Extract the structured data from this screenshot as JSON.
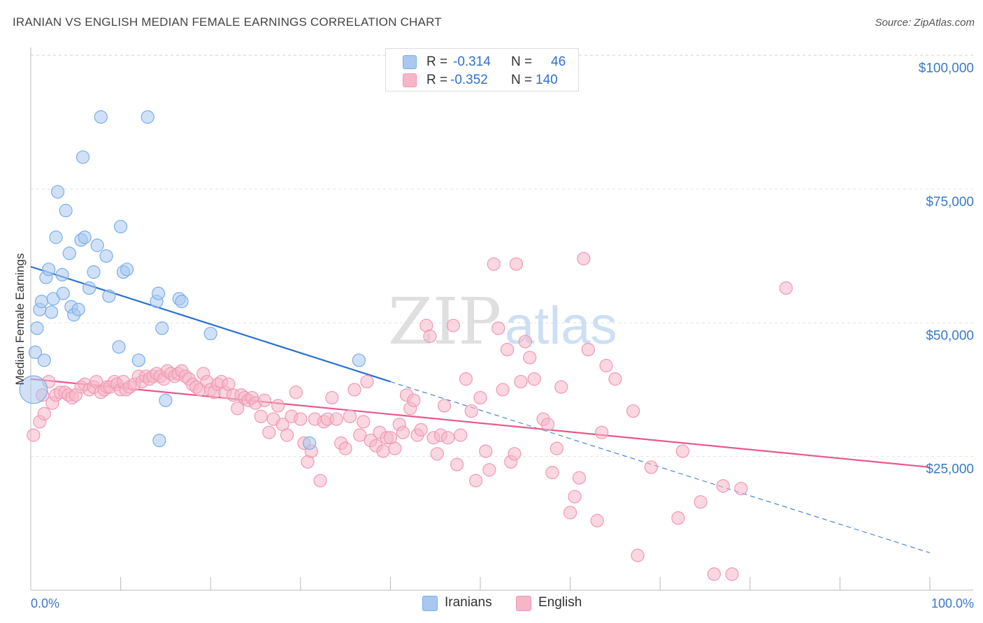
{
  "title": "IRANIAN VS ENGLISH MEDIAN FEMALE EARNINGS CORRELATION CHART",
  "source": "Source: ZipAtlas.com",
  "watermark": {
    "zip": "ZIP",
    "atlas": "atlas"
  },
  "legend": {
    "rows": [
      {
        "r_label": "R =",
        "r_value": "-0.314",
        "n_label": "N =",
        "n_value": "46",
        "color": "#a9c8f0"
      },
      {
        "r_label": "R =",
        "r_value": "-0.352",
        "n_label": "N =",
        "n_value": "140",
        "color": "#f5b6c8"
      }
    ]
  },
  "bottom_legend": [
    {
      "label": "Iranians",
      "color": "#a9c8f0"
    },
    {
      "label": "English",
      "color": "#f5b6c8"
    }
  ],
  "chart_data": {
    "type": "scatter",
    "title": "IRANIAN VS ENGLISH MEDIAN FEMALE EARNINGS CORRELATION CHART",
    "xlabel": "",
    "ylabel": "Median Female Earnings",
    "xlim": [
      0,
      100
    ],
    "ylim": [
      0,
      105000
    ],
    "x_tick_labels": [
      "0.0%",
      "100.0%"
    ],
    "y_ticks": [
      25000,
      50000,
      75000,
      100000
    ],
    "y_tick_labels": [
      "$25,000",
      "$50,000",
      "$75,000",
      "$100,000"
    ],
    "grid": true,
    "legend_placement": "top-center",
    "series": [
      {
        "name": "Iranians",
        "color": "#7aaee8",
        "fill": "#a9c8f0",
        "line_color": "#2a6fd1",
        "trend": {
          "x0": 0,
          "y0": 60500,
          "x1": 40,
          "y1": 39000,
          "dash_to_x": 100,
          "dash_to_y": 7000
        },
        "points": [
          [
            0.3,
            37500,
            2.2
          ],
          [
            0.5,
            44500,
            1
          ],
          [
            0.7,
            49000,
            1
          ],
          [
            1.0,
            52500,
            1
          ],
          [
            1.2,
            54000,
            1
          ],
          [
            1.5,
            43000,
            1
          ],
          [
            1.7,
            58500,
            1
          ],
          [
            2.0,
            60000,
            1
          ],
          [
            2.3,
            52000,
            1
          ],
          [
            2.5,
            54500,
            1
          ],
          [
            2.8,
            66000,
            1
          ],
          [
            3.0,
            74500,
            1
          ],
          [
            3.5,
            59000,
            1
          ],
          [
            3.6,
            55500,
            1
          ],
          [
            3.9,
            71000,
            1
          ],
          [
            4.3,
            63000,
            1
          ],
          [
            4.5,
            53000,
            1
          ],
          [
            4.8,
            51500,
            1
          ],
          [
            5.3,
            52500,
            1
          ],
          [
            5.6,
            65500,
            1
          ],
          [
            5.8,
            81000,
            1
          ],
          [
            6.0,
            66000,
            1
          ],
          [
            6.5,
            56500,
            1
          ],
          [
            7.0,
            59500,
            1
          ],
          [
            7.4,
            64500,
            1
          ],
          [
            7.8,
            88500,
            1
          ],
          [
            8.4,
            62500,
            1
          ],
          [
            8.7,
            55000,
            1
          ],
          [
            9.8,
            45500,
            1
          ],
          [
            10.0,
            68000,
            1
          ],
          [
            10.3,
            59500,
            1
          ],
          [
            10.7,
            60000,
            1
          ],
          [
            12.0,
            43000,
            1
          ],
          [
            13.0,
            88500,
            1
          ],
          [
            14.0,
            54000,
            1
          ],
          [
            14.2,
            55500,
            1
          ],
          [
            14.3,
            28000,
            1
          ],
          [
            14.6,
            49000,
            1
          ],
          [
            15.0,
            35500,
            1
          ],
          [
            16.5,
            54500,
            1
          ],
          [
            16.8,
            54000,
            1
          ],
          [
            20.0,
            48000,
            1
          ],
          [
            31.0,
            27500,
            1
          ],
          [
            36.5,
            43000,
            1
          ]
        ]
      },
      {
        "name": "English",
        "color": "#f098b4",
        "fill": "#f5b6c8",
        "line_color": "#e8588a",
        "trend": {
          "x0": 0,
          "y0": 39500,
          "x1": 100,
          "y1": 23000
        },
        "points": [
          [
            0.3,
            29000
          ],
          [
            1.0,
            31500
          ],
          [
            1.3,
            36500
          ],
          [
            1.5,
            33000
          ],
          [
            2.0,
            39000
          ],
          [
            2.4,
            35000
          ],
          [
            2.8,
            36500
          ],
          [
            3.3,
            37000
          ],
          [
            3.8,
            37000
          ],
          [
            4.2,
            36500
          ],
          [
            4.6,
            36000
          ],
          [
            5.0,
            36500
          ],
          [
            5.6,
            38000
          ],
          [
            6.0,
            38500
          ],
          [
            6.5,
            37500
          ],
          [
            7.0,
            38000
          ],
          [
            7.3,
            39000
          ],
          [
            7.8,
            37000
          ],
          [
            8.2,
            37500
          ],
          [
            8.5,
            38000
          ],
          [
            8.8,
            38000
          ],
          [
            9.3,
            39000
          ],
          [
            9.6,
            38500
          ],
          [
            10.0,
            37500
          ],
          [
            10.3,
            39000
          ],
          [
            10.6,
            37500
          ],
          [
            11.0,
            38000
          ],
          [
            11.5,
            38500
          ],
          [
            12.0,
            40000
          ],
          [
            12.4,
            39000
          ],
          [
            12.8,
            40000
          ],
          [
            13.2,
            39500
          ],
          [
            13.6,
            40000
          ],
          [
            14.0,
            40500
          ],
          [
            14.4,
            40000
          ],
          [
            14.8,
            39500
          ],
          [
            15.2,
            41000
          ],
          [
            15.6,
            40500
          ],
          [
            16.0,
            40000
          ],
          [
            16.4,
            40500
          ],
          [
            16.8,
            41000
          ],
          [
            17.2,
            40000
          ],
          [
            17.6,
            39500
          ],
          [
            18.0,
            38500
          ],
          [
            18.4,
            38000
          ],
          [
            18.8,
            37500
          ],
          [
            19.2,
            40500
          ],
          [
            19.6,
            39000
          ],
          [
            20.0,
            37500
          ],
          [
            20.4,
            37000
          ],
          [
            20.8,
            38500
          ],
          [
            21.2,
            39000
          ],
          [
            21.6,
            37000
          ],
          [
            22.0,
            38500
          ],
          [
            22.5,
            36500
          ],
          [
            23.0,
            34000
          ],
          [
            23.4,
            36500
          ],
          [
            23.8,
            36000
          ],
          [
            24.2,
            35500
          ],
          [
            24.6,
            36000
          ],
          [
            25.0,
            35000
          ],
          [
            25.6,
            32500
          ],
          [
            26.0,
            35500
          ],
          [
            26.5,
            29500
          ],
          [
            27.0,
            32000
          ],
          [
            27.5,
            34500
          ],
          [
            28.0,
            31000
          ],
          [
            28.5,
            29000
          ],
          [
            29.0,
            32500
          ],
          [
            29.5,
            37000
          ],
          [
            30.0,
            32000
          ],
          [
            30.4,
            27500
          ],
          [
            30.8,
            24000
          ],
          [
            31.2,
            26000
          ],
          [
            31.6,
            32000
          ],
          [
            32.2,
            20500
          ],
          [
            32.6,
            31500
          ],
          [
            33.0,
            32000
          ],
          [
            33.5,
            36000
          ],
          [
            34.0,
            32000
          ],
          [
            34.5,
            27500
          ],
          [
            35.0,
            26500
          ],
          [
            35.5,
            32500
          ],
          [
            36.0,
            37500
          ],
          [
            36.6,
            29000
          ],
          [
            37.0,
            31500
          ],
          [
            37.4,
            39000
          ],
          [
            37.8,
            28000
          ],
          [
            38.4,
            27000
          ],
          [
            38.8,
            29500
          ],
          [
            39.2,
            26000
          ],
          [
            39.6,
            28500
          ],
          [
            40.0,
            28500
          ],
          [
            40.5,
            26500
          ],
          [
            41.0,
            31000
          ],
          [
            41.4,
            29500
          ],
          [
            41.8,
            36500
          ],
          [
            42.2,
            34000
          ],
          [
            42.6,
            35500
          ],
          [
            43.0,
            29000
          ],
          [
            43.4,
            30000
          ],
          [
            44.0,
            49500
          ],
          [
            44.4,
            47500
          ],
          [
            44.8,
            28500
          ],
          [
            45.2,
            25500
          ],
          [
            45.6,
            29000
          ],
          [
            46.0,
            34500
          ],
          [
            46.4,
            28500
          ],
          [
            47.0,
            49500
          ],
          [
            47.4,
            23500
          ],
          [
            47.8,
            29000
          ],
          [
            48.4,
            39500
          ],
          [
            49.0,
            33500
          ],
          [
            49.5,
            20500
          ],
          [
            50.0,
            36000
          ],
          [
            50.6,
            26000
          ],
          [
            51.0,
            22500
          ],
          [
            51.5,
            61000
          ],
          [
            52.0,
            49000
          ],
          [
            52.5,
            37500
          ],
          [
            53.0,
            45000
          ],
          [
            53.4,
            24000
          ],
          [
            53.8,
            25500
          ],
          [
            54.0,
            61000
          ],
          [
            54.5,
            39000
          ],
          [
            55.0,
            46500
          ],
          [
            55.5,
            43500
          ],
          [
            56.0,
            39500
          ],
          [
            57.0,
            32000
          ],
          [
            57.5,
            31000
          ],
          [
            58.0,
            22000
          ],
          [
            58.5,
            26500
          ],
          [
            59.0,
            38000
          ],
          [
            60.0,
            14500
          ],
          [
            60.5,
            17500
          ],
          [
            61.0,
            21000
          ],
          [
            61.5,
            62000
          ],
          [
            62.0,
            45000
          ],
          [
            63.0,
            13000
          ],
          [
            63.5,
            29500
          ],
          [
            64.0,
            42000
          ],
          [
            65.0,
            39500
          ],
          [
            67.0,
            33500
          ],
          [
            67.5,
            6500
          ],
          [
            69.0,
            23000
          ],
          [
            72.0,
            13500
          ],
          [
            72.5,
            26000
          ],
          [
            74.5,
            16500
          ],
          [
            76.0,
            3000
          ],
          [
            77.0,
            19500
          ],
          [
            78.0,
            3000
          ],
          [
            79.0,
            19000
          ],
          [
            84.0,
            56500
          ]
        ]
      }
    ]
  }
}
